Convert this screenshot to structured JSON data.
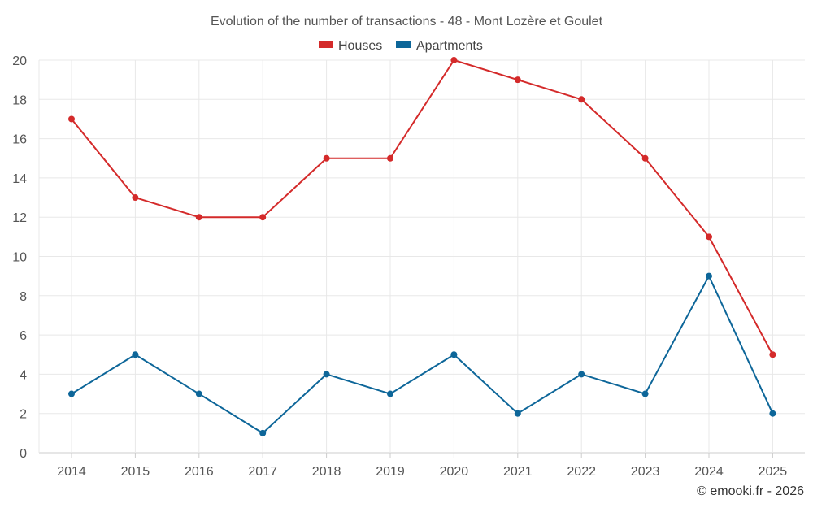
{
  "chart_data": {
    "type": "line",
    "title": "Evolution of the number of transactions - 48 - Mont Lozère et Goulet",
    "categories": [
      "2014",
      "2015",
      "2016",
      "2017",
      "2018",
      "2019",
      "2020",
      "2021",
      "2022",
      "2023",
      "2024",
      "2025"
    ],
    "series": [
      {
        "name": "Houses",
        "color": "#d42a2a",
        "values": [
          17,
          13,
          12,
          12,
          15,
          15,
          20,
          19,
          18,
          15,
          11,
          5
        ]
      },
      {
        "name": "Apartments",
        "color": "#0d6699",
        "values": [
          3,
          5,
          3,
          1,
          4,
          3,
          5,
          2,
          4,
          3,
          9,
          2
        ]
      }
    ],
    "ylim": [
      0,
      20
    ],
    "yticks": [
      "0",
      "2",
      "4",
      "6",
      "8",
      "10",
      "12",
      "14",
      "16",
      "18",
      "20"
    ],
    "xlabel": "",
    "ylabel": "",
    "grid": true,
    "legend_position": "top-center"
  },
  "credit": "© emooki.fr - 2026"
}
